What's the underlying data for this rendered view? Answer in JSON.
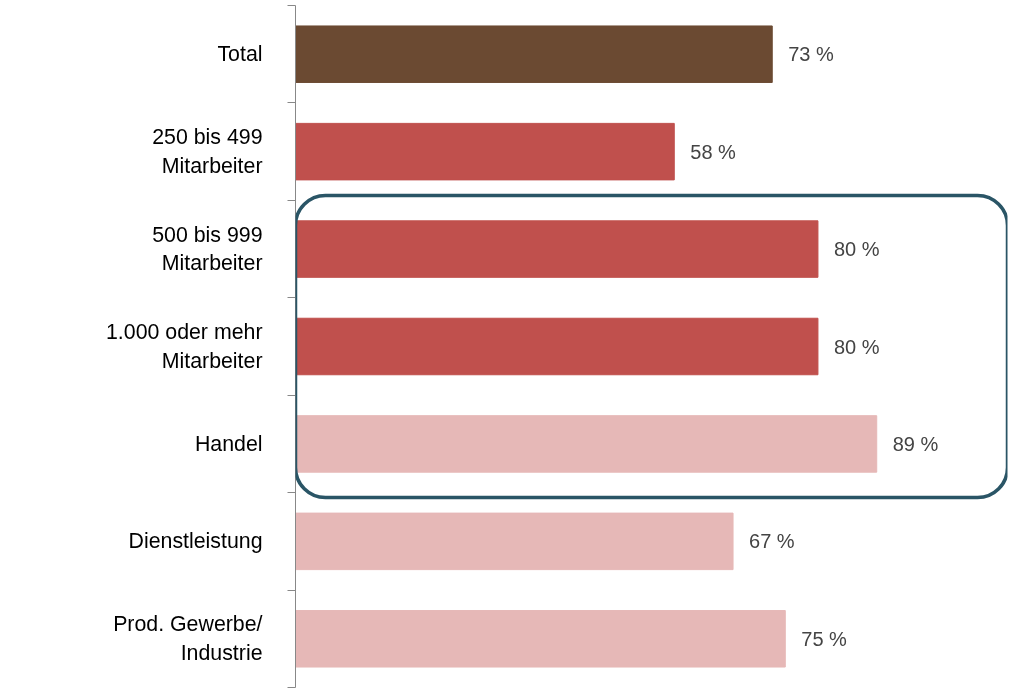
{
  "chart_data": {
    "type": "bar",
    "orientation": "horizontal",
    "categories": [
      "Total",
      "250 bis 499\nMitarbeiter",
      "500 bis 999\nMitarbeiter",
      "1.000 oder mehr\nMitarbeiter",
      "Handel",
      "Dienstleistung",
      "Prod. Gewerbe/\nIndustrie"
    ],
    "values": [
      73,
      58,
      80,
      80,
      89,
      67,
      75
    ],
    "colors": [
      "#6b4a32",
      "#c0504d",
      "#c0504d",
      "#c0504d",
      "#e6b8b7",
      "#e6b8b7",
      "#e6b8b7"
    ],
    "value_labels": [
      "73 %",
      "58 %",
      "80 %",
      "80 %",
      "89 %",
      "67 %",
      "75 %"
    ],
    "grid": false
  }
}
